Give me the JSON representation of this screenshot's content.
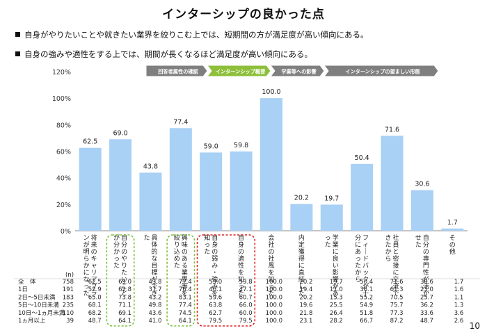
{
  "page": {
    "title": "インターシップの良かった点",
    "bullets": [
      "自身がやりたいことや就きたい業界を絞りこむ上では、短期間の方が満足度が高い傾向にある。",
      "自身の強みや適性をする上では、期間が長くなるほど満足度が高い傾向にある。"
    ],
    "page_number": "10"
  },
  "chart_data": {
    "type": "bar",
    "ylim": [
      0,
      120
    ],
    "yticks": [
      "0%",
      "20%",
      "40%",
      "60%",
      "80%",
      "100%",
      "120%"
    ],
    "categories": [
      "将来のキャリアプランが明らかになった",
      "自分のやりたいことが分かった",
      "具体的な目標ができた",
      "興味のある業界等を絞り込めた",
      "自身の弱み・強みを知った",
      "自身の適性を知った",
      "会社の社風を知った",
      "内定獲得に直結した",
      "学業に良い影響があった",
      "フィードバックが十分にあったから",
      "社員と密接に交流できたから",
      "自分の専門性が活かせた",
      "その他"
    ],
    "values": [
      62.5,
      69.0,
      43.8,
      77.4,
      59.0,
      59.8,
      100.0,
      20.2,
      19.7,
      50.4,
      71.6,
      30.6,
      1.7
    ],
    "value_labels": [
      "62.5",
      "69.0",
      "43.8",
      "77.4",
      "59.0",
      "59.8",
      "100.0",
      "20.2",
      "19.7",
      "50.4",
      "71.6",
      "30.6",
      "1.7"
    ],
    "bar_color": "#a9d0f5",
    "phases": [
      {
        "label": "回答者属性の確認",
        "color": "#7f7f7f"
      },
      {
        "label": "インターンシップ概要",
        "color": "#8dbf3a"
      },
      {
        "label": "学業等への影響",
        "color": "#7f7f7f"
      },
      {
        "label": "インターンシップの望ましい形態",
        "color": "#7f7f7f"
      }
    ],
    "table": {
      "n_header": "(n)",
      "rows": [
        {
          "label": "全　体",
          "n": "758",
          "values": [
            "62.5",
            "69.0",
            "43.8",
            "77.4",
            "59.0",
            "59.8",
            "100.0",
            "20.2",
            "19.7",
            "50.4",
            "71.6",
            "30.6",
            "1.7"
          ]
        },
        {
          "label": "1日",
          "n": "191",
          "values": [
            "52.9",
            "62.8",
            "37.7",
            "76.4",
            "46.1",
            "47.1",
            "100.0",
            "19.4",
            "11.0",
            "36.1",
            "61.3",
            "23.0",
            "1.6"
          ]
        },
        {
          "label": "2日～5日未満",
          "n": "183",
          "values": [
            "65.0",
            "73.8",
            "43.2",
            "83.1",
            "59.6",
            "60.7",
            "100.0",
            "20.2",
            "15.3",
            "55.2",
            "70.5",
            "25.7",
            "1.1"
          ]
        },
        {
          "label": "5日～10日未満",
          "n": "235",
          "values": [
            "68.1",
            "71.1",
            "49.8",
            "77.4",
            "63.8",
            "66.0",
            "100.0",
            "19.6",
            "25.5",
            "54.9",
            "75.7",
            "36.2",
            "1.3"
          ]
        },
        {
          "label": "10日～1ヵ月未満",
          "n": "110",
          "values": [
            "68.2",
            "69.1",
            "43.6",
            "74.5",
            "62.7",
            "60.0",
            "100.0",
            "21.8",
            "26.4",
            "51.8",
            "77.3",
            "33.6",
            "3.6"
          ]
        },
        {
          "label": "1ヵ月以上",
          "n": "39",
          "values": [
            "48.7",
            "64.1",
            "41.0",
            "64.1",
            "79.5",
            "79.5",
            "100.0",
            "23.1",
            "28.2",
            "66.7",
            "87.2",
            "48.7",
            "2.6"
          ]
        }
      ]
    },
    "highlight_colors": {
      "green": "#7cc242",
      "red": "#e02020"
    }
  }
}
